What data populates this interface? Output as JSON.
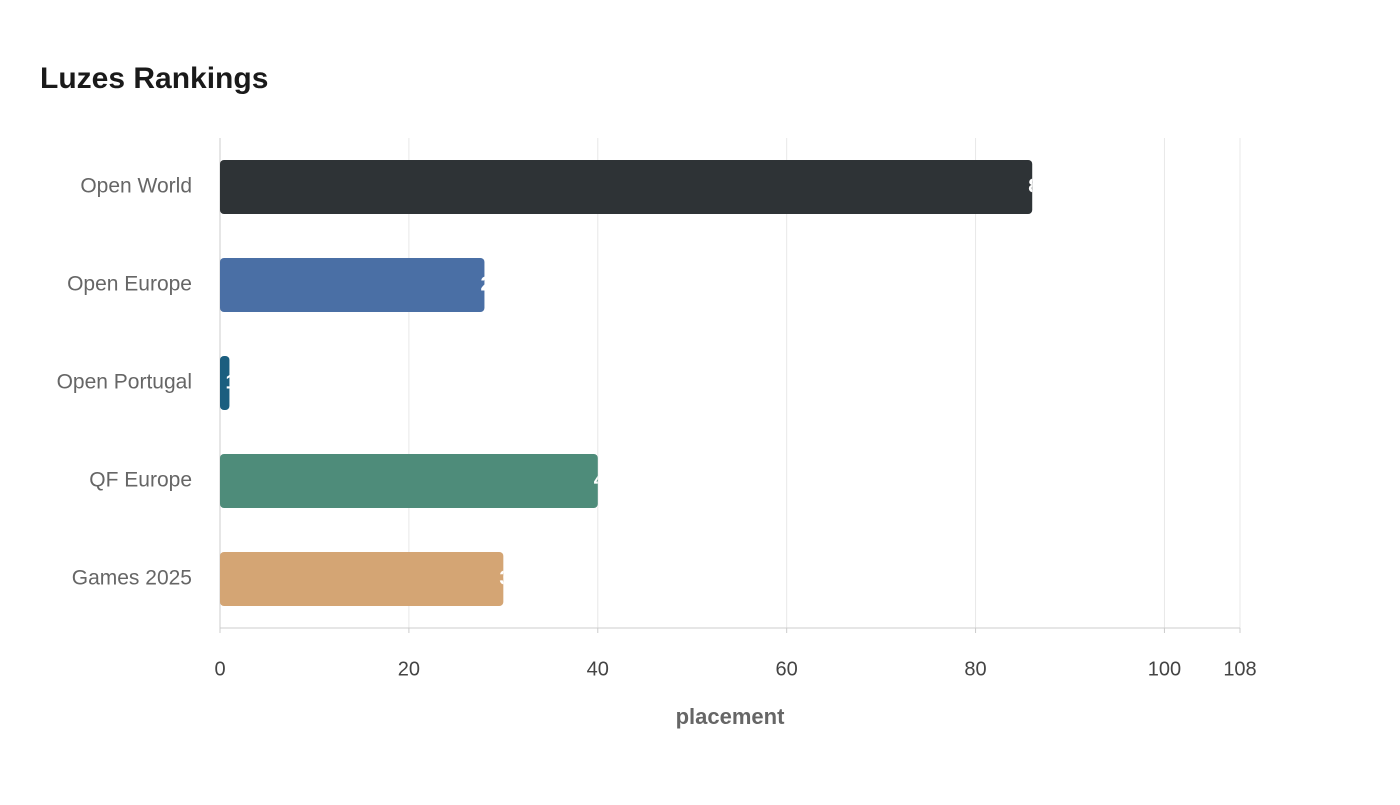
{
  "chart_data": {
    "type": "hbar",
    "title": "Luzes Rankings",
    "x_label": "placement",
    "categories": [
      "Open World",
      "Open Europe",
      "Open Portugal",
      "QF Europe",
      "Games 2025"
    ],
    "values": [
      86,
      28,
      1,
      40,
      30
    ],
    "colors": [
      "#2e3336",
      "#4a6fa5",
      "#1b5e7f",
      "#4e8c7a",
      "#d4a574"
    ],
    "xlim": [
      0,
      108
    ],
    "xticks": [
      0,
      20,
      40,
      60,
      80,
      100,
      108
    ],
    "grid": true
  }
}
